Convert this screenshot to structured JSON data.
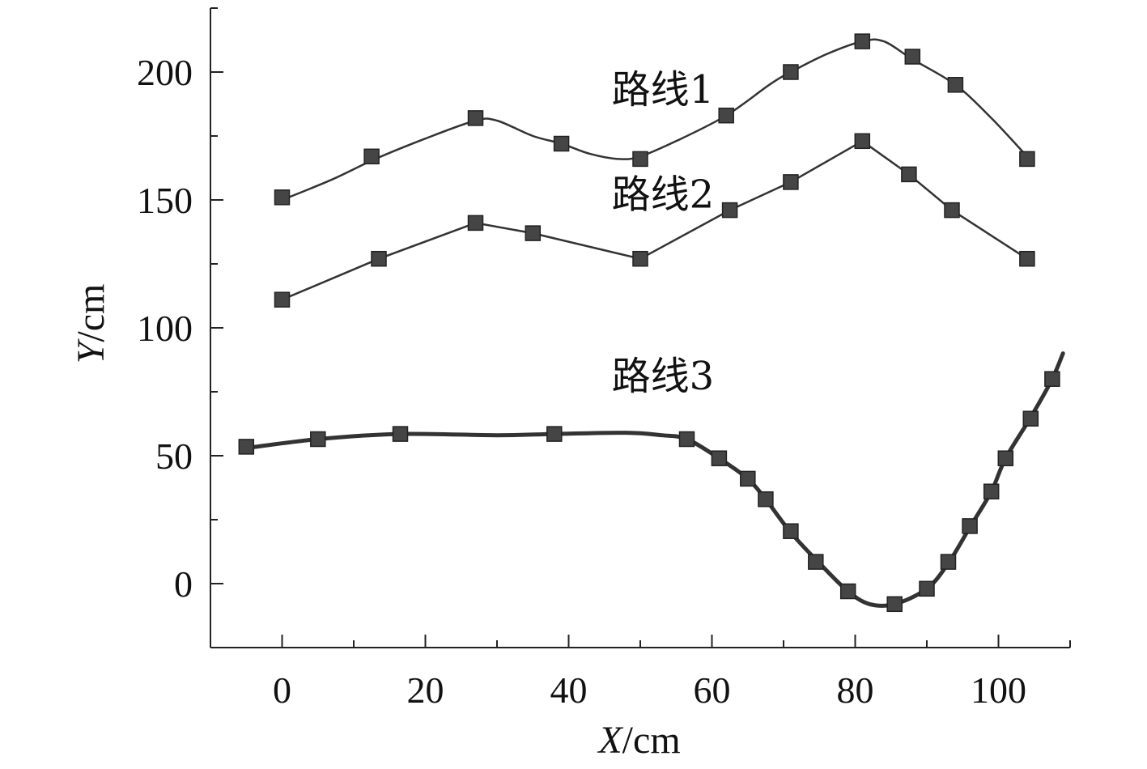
{
  "chart_data": {
    "type": "line",
    "xlabel_italic": "X",
    "xlabel_unit": "/cm",
    "ylabel_italic": "Y",
    "ylabel_unit": "/cm",
    "xlim": [
      -10,
      110
    ],
    "ylim": [
      -25,
      225
    ],
    "x_ticks": [
      0,
      20,
      40,
      60,
      80,
      100
    ],
    "x_tick_labels": [
      "0",
      "20",
      "40",
      "60",
      "80",
      "100"
    ],
    "y_ticks": [
      0,
      50,
      100,
      150,
      200
    ],
    "y_tick_labels": [
      "0",
      "50",
      "100",
      "150",
      "200"
    ],
    "grid": false,
    "series": [
      {
        "name": "路线1",
        "label_at": [
          46,
          188
        ],
        "curve": [
          [
            0,
            150
          ],
          [
            7,
            158
          ],
          [
            13,
            166
          ],
          [
            20,
            174
          ],
          [
            27,
            181
          ],
          [
            30,
            181
          ],
          [
            35,
            175
          ],
          [
            39,
            172
          ],
          [
            43,
            168
          ],
          [
            47,
            166
          ],
          [
            50,
            167
          ],
          [
            55,
            173
          ],
          [
            62,
            183
          ],
          [
            68,
            195
          ],
          [
            71,
            200
          ],
          [
            76,
            207
          ],
          [
            81,
            212
          ],
          [
            84,
            212
          ],
          [
            88,
            205
          ],
          [
            94,
            195
          ],
          [
            99,
            182
          ],
          [
            104,
            167
          ]
        ],
        "points": [
          [
            0,
            151
          ],
          [
            12.5,
            167
          ],
          [
            27,
            182
          ],
          [
            39,
            172
          ],
          [
            50,
            166
          ],
          [
            62,
            183
          ],
          [
            71,
            200
          ],
          [
            81,
            212
          ],
          [
            88,
            206
          ],
          [
            94,
            195
          ],
          [
            104,
            166
          ]
        ]
      },
      {
        "name": "路线2",
        "label_at": [
          46,
          147
        ],
        "curve": [
          [
            0,
            111
          ],
          [
            13.5,
            127
          ],
          [
            27,
            141
          ],
          [
            35,
            137
          ],
          [
            50,
            127
          ],
          [
            62.5,
            146
          ],
          [
            71,
            157
          ],
          [
            81,
            173
          ],
          [
            87.5,
            160
          ],
          [
            93.5,
            146
          ],
          [
            104,
            127
          ]
        ],
        "points": [
          [
            0,
            111
          ],
          [
            13.5,
            127
          ],
          [
            27,
            141
          ],
          [
            35,
            137
          ],
          [
            50,
            127
          ],
          [
            62.5,
            146
          ],
          [
            71,
            157
          ],
          [
            81,
            173
          ],
          [
            87.5,
            160
          ],
          [
            93.5,
            146
          ],
          [
            104,
            127
          ]
        ]
      },
      {
        "name": "路线3",
        "label_at": [
          46,
          76
        ],
        "curve": [
          [
            -5,
            53
          ],
          [
            5,
            56.5
          ],
          [
            16.5,
            58.5
          ],
          [
            30,
            58
          ],
          [
            38,
            58.5
          ],
          [
            48,
            59
          ],
          [
            53,
            58
          ],
          [
            56.5,
            56.5
          ],
          [
            61,
            49
          ],
          [
            65,
            41
          ],
          [
            67.5,
            33
          ],
          [
            71,
            20
          ],
          [
            75,
            8
          ],
          [
            79,
            -3
          ],
          [
            82,
            -8
          ],
          [
            85.5,
            -8
          ],
          [
            90,
            -2
          ],
          [
            93,
            8
          ],
          [
            96,
            22
          ],
          [
            99,
            36
          ],
          [
            101,
            49
          ],
          [
            104.5,
            65
          ],
          [
            107.5,
            80
          ],
          [
            109,
            90
          ]
        ],
        "points": [
          [
            -5,
            53.5
          ],
          [
            5,
            56.5
          ],
          [
            16.5,
            58.5
          ],
          [
            38,
            58.5
          ],
          [
            56.5,
            56.5
          ],
          [
            61,
            49
          ],
          [
            65,
            41
          ],
          [
            67.5,
            33
          ],
          [
            71,
            20.5
          ],
          [
            74.5,
            8.5
          ],
          [
            79,
            -3
          ],
          [
            85.5,
            -8
          ],
          [
            90,
            -2
          ],
          [
            93,
            8.5
          ],
          [
            96,
            22.5
          ],
          [
            99,
            36
          ],
          [
            101,
            49
          ],
          [
            104.5,
            64.5
          ],
          [
            107.5,
            80
          ]
        ]
      }
    ]
  }
}
